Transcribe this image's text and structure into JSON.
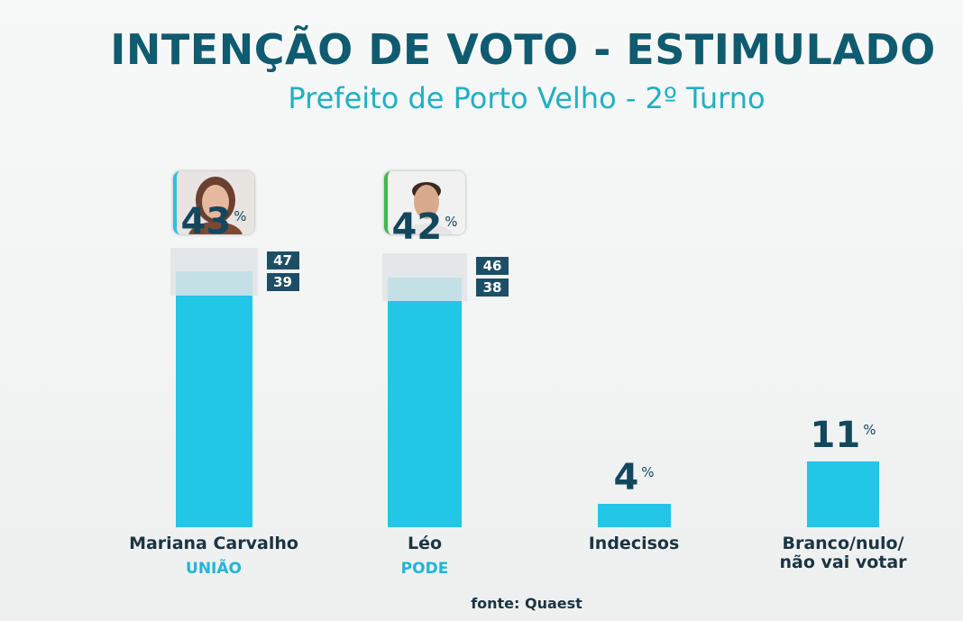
{
  "chart_data": {
    "type": "bar",
    "title": "INTENÇÃO DE VOTO - ESTIMULADO",
    "subtitle": "Prefeito de Porto Velho - 2º Turno",
    "categories": [
      "Mariana Carvalho",
      "Léo",
      "Indecisos",
      "Branco/nulo/\nnão vai votar"
    ],
    "parties": [
      "UNIÃO",
      "PODE",
      null,
      null
    ],
    "values": [
      43,
      42,
      4,
      11
    ],
    "unit": "%",
    "range_high": [
      47,
      46,
      null,
      null
    ],
    "range_low": [
      39,
      38,
      null,
      null
    ],
    "color": "#22c6e6",
    "source": "fonte: Quaest"
  }
}
